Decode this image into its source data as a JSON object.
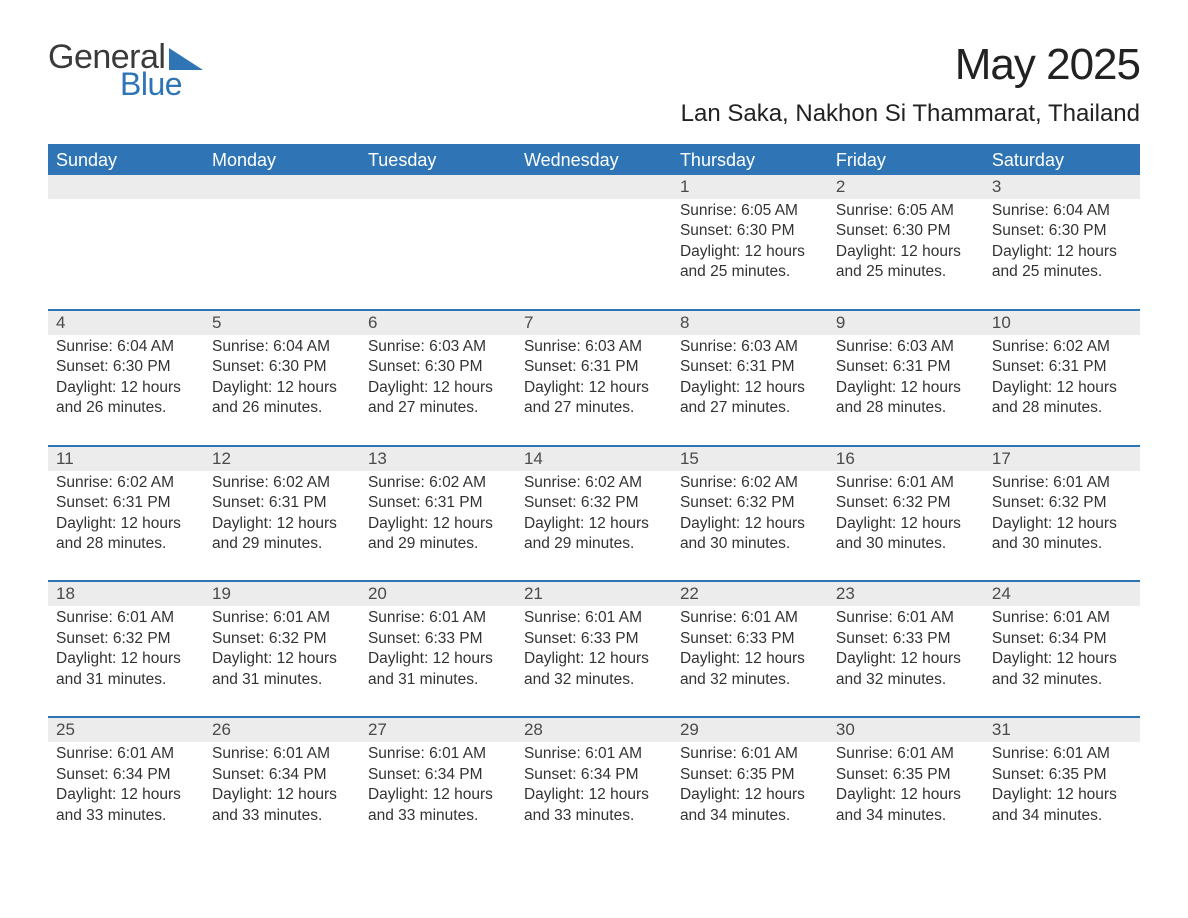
{
  "logo": {
    "general": "General",
    "blue": "Blue"
  },
  "title": "May 2025",
  "location": "Lan Saka, Nakhon Si Thammarat, Thailand",
  "colors": {
    "header_bg": "#2f75b5",
    "header_text": "#ffffff",
    "daynum_bg": "#ececec",
    "daynum_text": "#4a4a4a",
    "body_text": "#333333",
    "rule": "#2f75b5",
    "page_bg": "#ffffff"
  },
  "typography": {
    "title_fontsize": 44,
    "location_fontsize": 24,
    "header_fontsize": 18,
    "daynum_fontsize": 17,
    "body_fontsize": 15.5,
    "font_family": "Segoe UI"
  },
  "day_headers": [
    "Sunday",
    "Monday",
    "Tuesday",
    "Wednesday",
    "Thursday",
    "Friday",
    "Saturday"
  ],
  "weeks": [
    [
      null,
      null,
      null,
      null,
      {
        "n": "1",
        "sunrise": "Sunrise: 6:05 AM",
        "sunset": "Sunset: 6:30 PM",
        "daylight": "Daylight: 12 hours and 25 minutes."
      },
      {
        "n": "2",
        "sunrise": "Sunrise: 6:05 AM",
        "sunset": "Sunset: 6:30 PM",
        "daylight": "Daylight: 12 hours and 25 minutes."
      },
      {
        "n": "3",
        "sunrise": "Sunrise: 6:04 AM",
        "sunset": "Sunset: 6:30 PM",
        "daylight": "Daylight: 12 hours and 25 minutes."
      }
    ],
    [
      {
        "n": "4",
        "sunrise": "Sunrise: 6:04 AM",
        "sunset": "Sunset: 6:30 PM",
        "daylight": "Daylight: 12 hours and 26 minutes."
      },
      {
        "n": "5",
        "sunrise": "Sunrise: 6:04 AM",
        "sunset": "Sunset: 6:30 PM",
        "daylight": "Daylight: 12 hours and 26 minutes."
      },
      {
        "n": "6",
        "sunrise": "Sunrise: 6:03 AM",
        "sunset": "Sunset: 6:30 PM",
        "daylight": "Daylight: 12 hours and 27 minutes."
      },
      {
        "n": "7",
        "sunrise": "Sunrise: 6:03 AM",
        "sunset": "Sunset: 6:31 PM",
        "daylight": "Daylight: 12 hours and 27 minutes."
      },
      {
        "n": "8",
        "sunrise": "Sunrise: 6:03 AM",
        "sunset": "Sunset: 6:31 PM",
        "daylight": "Daylight: 12 hours and 27 minutes."
      },
      {
        "n": "9",
        "sunrise": "Sunrise: 6:03 AM",
        "sunset": "Sunset: 6:31 PM",
        "daylight": "Daylight: 12 hours and 28 minutes."
      },
      {
        "n": "10",
        "sunrise": "Sunrise: 6:02 AM",
        "sunset": "Sunset: 6:31 PM",
        "daylight": "Daylight: 12 hours and 28 minutes."
      }
    ],
    [
      {
        "n": "11",
        "sunrise": "Sunrise: 6:02 AM",
        "sunset": "Sunset: 6:31 PM",
        "daylight": "Daylight: 12 hours and 28 minutes."
      },
      {
        "n": "12",
        "sunrise": "Sunrise: 6:02 AM",
        "sunset": "Sunset: 6:31 PM",
        "daylight": "Daylight: 12 hours and 29 minutes."
      },
      {
        "n": "13",
        "sunrise": "Sunrise: 6:02 AM",
        "sunset": "Sunset: 6:31 PM",
        "daylight": "Daylight: 12 hours and 29 minutes."
      },
      {
        "n": "14",
        "sunrise": "Sunrise: 6:02 AM",
        "sunset": "Sunset: 6:32 PM",
        "daylight": "Daylight: 12 hours and 29 minutes."
      },
      {
        "n": "15",
        "sunrise": "Sunrise: 6:02 AM",
        "sunset": "Sunset: 6:32 PM",
        "daylight": "Daylight: 12 hours and 30 minutes."
      },
      {
        "n": "16",
        "sunrise": "Sunrise: 6:01 AM",
        "sunset": "Sunset: 6:32 PM",
        "daylight": "Daylight: 12 hours and 30 minutes."
      },
      {
        "n": "17",
        "sunrise": "Sunrise: 6:01 AM",
        "sunset": "Sunset: 6:32 PM",
        "daylight": "Daylight: 12 hours and 30 minutes."
      }
    ],
    [
      {
        "n": "18",
        "sunrise": "Sunrise: 6:01 AM",
        "sunset": "Sunset: 6:32 PM",
        "daylight": "Daylight: 12 hours and 31 minutes."
      },
      {
        "n": "19",
        "sunrise": "Sunrise: 6:01 AM",
        "sunset": "Sunset: 6:32 PM",
        "daylight": "Daylight: 12 hours and 31 minutes."
      },
      {
        "n": "20",
        "sunrise": "Sunrise: 6:01 AM",
        "sunset": "Sunset: 6:33 PM",
        "daylight": "Daylight: 12 hours and 31 minutes."
      },
      {
        "n": "21",
        "sunrise": "Sunrise: 6:01 AM",
        "sunset": "Sunset: 6:33 PM",
        "daylight": "Daylight: 12 hours and 32 minutes."
      },
      {
        "n": "22",
        "sunrise": "Sunrise: 6:01 AM",
        "sunset": "Sunset: 6:33 PM",
        "daylight": "Daylight: 12 hours and 32 minutes."
      },
      {
        "n": "23",
        "sunrise": "Sunrise: 6:01 AM",
        "sunset": "Sunset: 6:33 PM",
        "daylight": "Daylight: 12 hours and 32 minutes."
      },
      {
        "n": "24",
        "sunrise": "Sunrise: 6:01 AM",
        "sunset": "Sunset: 6:34 PM",
        "daylight": "Daylight: 12 hours and 32 minutes."
      }
    ],
    [
      {
        "n": "25",
        "sunrise": "Sunrise: 6:01 AM",
        "sunset": "Sunset: 6:34 PM",
        "daylight": "Daylight: 12 hours and 33 minutes."
      },
      {
        "n": "26",
        "sunrise": "Sunrise: 6:01 AM",
        "sunset": "Sunset: 6:34 PM",
        "daylight": "Daylight: 12 hours and 33 minutes."
      },
      {
        "n": "27",
        "sunrise": "Sunrise: 6:01 AM",
        "sunset": "Sunset: 6:34 PM",
        "daylight": "Daylight: 12 hours and 33 minutes."
      },
      {
        "n": "28",
        "sunrise": "Sunrise: 6:01 AM",
        "sunset": "Sunset: 6:34 PM",
        "daylight": "Daylight: 12 hours and 33 minutes."
      },
      {
        "n": "29",
        "sunrise": "Sunrise: 6:01 AM",
        "sunset": "Sunset: 6:35 PM",
        "daylight": "Daylight: 12 hours and 34 minutes."
      },
      {
        "n": "30",
        "sunrise": "Sunrise: 6:01 AM",
        "sunset": "Sunset: 6:35 PM",
        "daylight": "Daylight: 12 hours and 34 minutes."
      },
      {
        "n": "31",
        "sunrise": "Sunrise: 6:01 AM",
        "sunset": "Sunset: 6:35 PM",
        "daylight": "Daylight: 12 hours and 34 minutes."
      }
    ]
  ]
}
